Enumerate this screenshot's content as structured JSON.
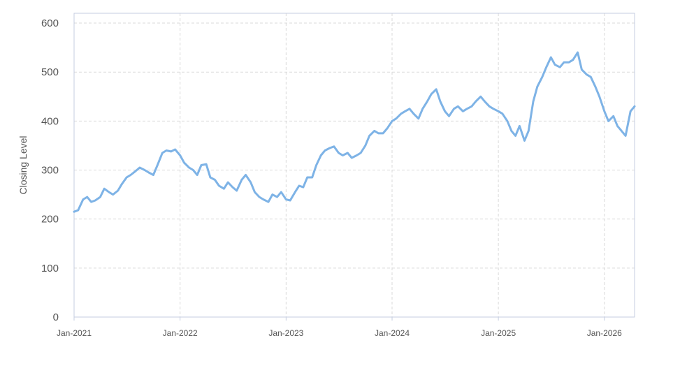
{
  "chart_data": {
    "type": "line",
    "title": "",
    "xlabel": "",
    "ylabel": "Closing Level",
    "ylim": [
      0,
      620
    ],
    "xlim": [
      "2021-01-01",
      "2026-04-15"
    ],
    "yticks": [
      0,
      100,
      200,
      300,
      400,
      500,
      600
    ],
    "xticks": [
      {
        "date": "2021-01-01",
        "label": "Jan-2021"
      },
      {
        "date": "2022-01-01",
        "label": "Jan-2022"
      },
      {
        "date": "2023-01-01",
        "label": "Jan-2023"
      },
      {
        "date": "2024-01-01",
        "label": "Jan-2024"
      },
      {
        "date": "2025-01-01",
        "label": "Jan-2025"
      },
      {
        "date": "2026-01-01",
        "label": "Jan-2026"
      }
    ],
    "grid": true,
    "colors": {
      "line": "#7eb3e6",
      "grid": "#d9d9d9",
      "axis": "#c5cde0"
    },
    "series": [
      {
        "x": [
          "2021-01-01",
          "2021-01-15",
          "2021-02-01",
          "2021-02-15",
          "2021-03-01",
          "2021-03-15",
          "2021-04-01",
          "2021-04-15",
          "2021-05-01",
          "2021-05-15",
          "2021-06-01",
          "2021-06-15",
          "2021-07-01",
          "2021-07-15",
          "2021-08-01",
          "2021-08-15",
          "2021-09-01",
          "2021-09-15",
          "2021-10-01",
          "2021-10-15",
          "2021-11-01",
          "2021-11-15",
          "2021-12-01",
          "2021-12-15",
          "2022-01-01",
          "2022-01-15",
          "2022-02-01",
          "2022-02-15",
          "2022-03-01",
          "2022-03-15",
          "2022-04-01",
          "2022-04-15",
          "2022-05-01",
          "2022-05-15",
          "2022-06-01",
          "2022-06-15",
          "2022-07-01",
          "2022-07-15",
          "2022-08-01",
          "2022-08-15",
          "2022-09-01",
          "2022-09-15",
          "2022-10-01",
          "2022-10-15",
          "2022-11-01",
          "2022-11-15",
          "2022-12-01",
          "2022-12-15",
          "2023-01-01",
          "2023-01-15",
          "2023-02-01",
          "2023-02-15",
          "2023-03-01",
          "2023-03-15",
          "2023-04-01",
          "2023-04-15",
          "2023-05-01",
          "2023-05-15",
          "2023-06-01",
          "2023-06-15",
          "2023-07-01",
          "2023-07-15",
          "2023-08-01",
          "2023-08-15",
          "2023-09-01",
          "2023-09-15",
          "2023-10-01",
          "2023-10-15",
          "2023-11-01",
          "2023-11-15",
          "2023-12-01",
          "2023-12-15",
          "2024-01-01",
          "2024-01-15",
          "2024-02-01",
          "2024-02-15",
          "2024-03-01",
          "2024-03-15",
          "2024-04-01",
          "2024-04-15",
          "2024-05-01",
          "2024-05-15",
          "2024-06-01",
          "2024-06-15",
          "2024-07-01",
          "2024-07-15",
          "2024-08-01",
          "2024-08-15",
          "2024-09-01",
          "2024-09-15",
          "2024-10-01",
          "2024-10-15",
          "2024-11-01",
          "2024-11-15",
          "2024-12-01",
          "2024-12-15",
          "2025-01-01",
          "2025-01-15",
          "2025-02-01",
          "2025-02-15",
          "2025-03-01",
          "2025-03-15",
          "2025-04-01",
          "2025-04-15",
          "2025-05-01",
          "2025-05-15",
          "2025-06-01",
          "2025-06-15",
          "2025-07-01",
          "2025-07-15",
          "2025-08-01",
          "2025-08-15",
          "2025-09-01",
          "2025-09-15",
          "2025-10-01",
          "2025-10-15",
          "2025-11-01",
          "2025-11-15",
          "2025-12-01",
          "2025-12-15",
          "2026-01-01",
          "2026-01-15",
          "2026-02-01",
          "2026-02-15",
          "2026-03-01",
          "2026-03-15",
          "2026-04-01",
          "2026-04-15"
        ],
        "values": [
          215,
          218,
          240,
          245,
          235,
          238,
          245,
          262,
          255,
          250,
          258,
          272,
          285,
          290,
          298,
          305,
          300,
          295,
          290,
          310,
          335,
          340,
          338,
          342,
          330,
          315,
          305,
          300,
          290,
          310,
          312,
          285,
          280,
          268,
          262,
          275,
          265,
          258,
          280,
          290,
          275,
          255,
          245,
          240,
          235,
          250,
          245,
          255,
          240,
          238,
          255,
          268,
          265,
          285,
          285,
          310,
          330,
          340,
          345,
          348,
          335,
          330,
          335,
          325,
          330,
          335,
          350,
          370,
          380,
          375,
          375,
          385,
          400,
          405,
          415,
          420,
          425,
          415,
          405,
          425,
          440,
          455,
          465,
          440,
          420,
          410,
          425,
          430,
          420,
          425,
          430,
          440,
          450,
          440,
          430,
          425,
          420,
          415,
          400,
          380,
          370,
          390,
          360,
          380,
          440,
          470,
          490,
          510,
          530,
          515,
          510,
          520,
          520,
          525,
          540,
          505,
          495,
          490,
          470,
          450,
          420,
          400,
          410,
          390,
          380,
          370,
          420,
          430
        ]
      }
    ]
  }
}
